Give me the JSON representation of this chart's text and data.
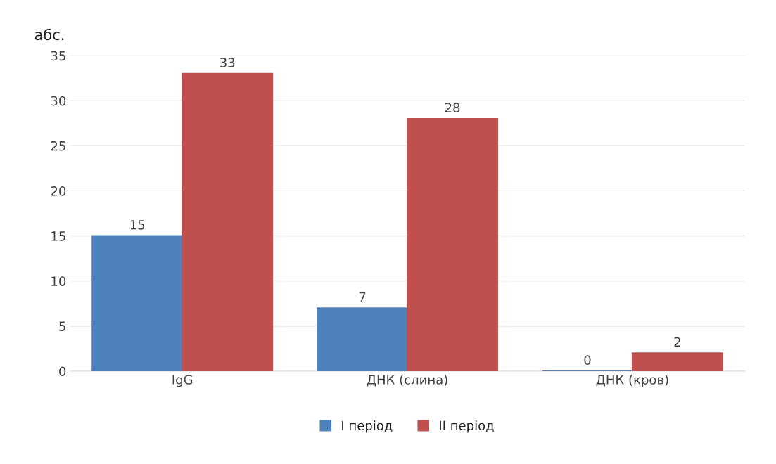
{
  "chart_data": {
    "type": "bar",
    "ylabel": "абс.",
    "categories": [
      "IgG",
      "ДНК (слина)",
      "ДНК (кров)"
    ],
    "series": [
      {
        "name": "I період",
        "color": "#4f81bd",
        "values": [
          15,
          7,
          0
        ]
      },
      {
        "name": "II період",
        "color": "#c0504d",
        "values": [
          33,
          28,
          2
        ]
      }
    ],
    "ylim": [
      0,
      35
    ],
    "yticks": [
      0,
      5,
      10,
      15,
      20,
      25,
      30,
      35
    ],
    "grid": "y",
    "legend": "bottom",
    "data_labels": true
  }
}
